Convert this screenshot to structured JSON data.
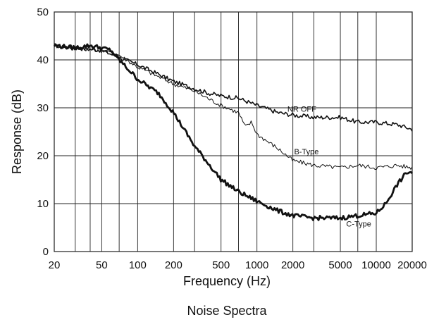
{
  "chart_data": {
    "type": "line",
    "title": "Noise Spectra",
    "xlabel": "Frequency (Hz)",
    "ylabel": "Response (dB)",
    "x_scale": "log",
    "xlim": [
      20,
      20000
    ],
    "ylim": [
      0,
      50
    ],
    "grid": true,
    "x_ticks": [
      {
        "value": 20,
        "label": "20"
      },
      {
        "value": 50,
        "label": "50"
      },
      {
        "value": 100,
        "label": "100"
      },
      {
        "value": 200,
        "label": "200"
      },
      {
        "value": 500,
        "label": "500"
      },
      {
        "value": 1000,
        "label": "1000"
      },
      {
        "value": 2000,
        "label": "2000"
      },
      {
        "value": 5000,
        "label": "5000"
      },
      {
        "value": 10000,
        "label": "10000"
      },
      {
        "value": 20000,
        "label": "20000"
      }
    ],
    "x_minor_grid": [
      30,
      40,
      70,
      300,
      700,
      3000,
      7000
    ],
    "y_ticks": [
      {
        "value": 0,
        "label": "0"
      },
      {
        "value": 10,
        "label": "10"
      },
      {
        "value": 20,
        "label": "20"
      },
      {
        "value": 30,
        "label": "30"
      },
      {
        "value": 40,
        "label": "40"
      },
      {
        "value": 50,
        "label": "50"
      }
    ],
    "series": [
      {
        "name": "NR OFF",
        "stroke": "#111111",
        "weight": "medium",
        "points": [
          [
            20,
            43
          ],
          [
            30,
            42.5
          ],
          [
            50,
            42
          ],
          [
            70,
            40.5
          ],
          [
            100,
            39
          ],
          [
            150,
            37
          ],
          [
            200,
            35.5
          ],
          [
            300,
            34
          ],
          [
            400,
            33
          ],
          [
            500,
            32.5
          ],
          [
            700,
            32
          ],
          [
            1000,
            30.5
          ],
          [
            1500,
            29
          ],
          [
            2000,
            28.5
          ],
          [
            3000,
            28
          ],
          [
            5000,
            28
          ],
          [
            7000,
            27
          ],
          [
            10000,
            27
          ],
          [
            15000,
            26.5
          ],
          [
            20000,
            25.5
          ]
        ]
      },
      {
        "name": "B-Type",
        "stroke": "#111111",
        "weight": "thin",
        "points": [
          [
            20,
            43
          ],
          [
            30,
            42.5
          ],
          [
            50,
            42
          ],
          [
            70,
            41
          ],
          [
            100,
            38.5
          ],
          [
            150,
            36.5
          ],
          [
            200,
            35
          ],
          [
            300,
            33.5
          ],
          [
            500,
            30.5
          ],
          [
            700,
            29
          ],
          [
            800,
            26
          ],
          [
            900,
            27
          ],
          [
            1000,
            24.5
          ],
          [
            1500,
            21.5
          ],
          [
            2000,
            19
          ],
          [
            3000,
            18
          ],
          [
            5000,
            17.5
          ],
          [
            7000,
            18
          ],
          [
            10000,
            17.5
          ],
          [
            15000,
            18
          ],
          [
            20000,
            17.5
          ]
        ]
      },
      {
        "name": "C-Type",
        "stroke": "#111111",
        "weight": "thick",
        "points": [
          [
            20,
            43
          ],
          [
            30,
            42.5
          ],
          [
            40,
            43
          ],
          [
            50,
            42.5
          ],
          [
            60,
            42
          ],
          [
            70,
            40
          ],
          [
            100,
            36
          ],
          [
            150,
            33
          ],
          [
            200,
            29
          ],
          [
            300,
            22
          ],
          [
            500,
            15
          ],
          [
            700,
            12.5
          ],
          [
            1000,
            10.5
          ],
          [
            1500,
            8.5
          ],
          [
            2000,
            7.5
          ],
          [
            3000,
            7
          ],
          [
            5000,
            7
          ],
          [
            7000,
            7.5
          ],
          [
            10000,
            8
          ],
          [
            12000,
            10
          ],
          [
            15000,
            14
          ],
          [
            18000,
            16.5
          ],
          [
            20000,
            16.5
          ]
        ]
      }
    ],
    "annotations": [
      {
        "text": "NR OFF",
        "x": 1800,
        "y": 29.2,
        "anchor": "start"
      },
      {
        "text": "B-Type",
        "x": 2050,
        "y": 20.3,
        "anchor": "start"
      },
      {
        "text": "C-Type",
        "x": 5600,
        "y": 5.2,
        "anchor": "start"
      }
    ]
  }
}
